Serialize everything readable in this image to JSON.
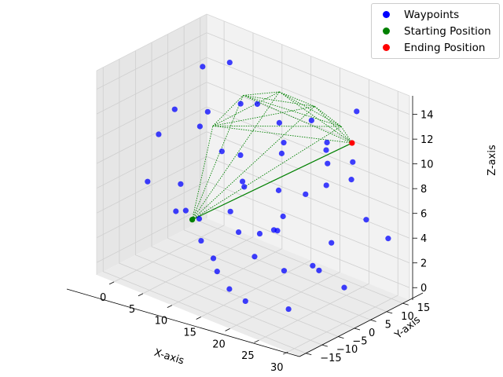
{
  "chart_data": {
    "type": "scatter",
    "projection": "3d",
    "xlabel": "X-axis",
    "ylabel": "Y-axis",
    "zlabel": "Z-axis",
    "xlim": [
      -3,
      32
    ],
    "ylim": [
      -17,
      17
    ],
    "zlim": [
      -1,
      15.5
    ],
    "xticks": [
      0,
      5,
      10,
      15,
      20,
      25,
      30
    ],
    "yticks": [
      -15,
      -10,
      -5,
      0,
      5,
      10,
      15
    ],
    "zticks": [
      0,
      2,
      4,
      6,
      8,
      10,
      12,
      14
    ],
    "grid": true,
    "legend_position": "top-right",
    "series": [
      {
        "name": "Waypoints",
        "color": "#0000ff",
        "points": [
          [
            1,
            -5,
            9.5
          ],
          [
            4,
            -2,
            3.5
          ],
          [
            3,
            5,
            14
          ],
          [
            6,
            8,
            14.5
          ],
          [
            2,
            0,
            5
          ],
          [
            5,
            3,
            11
          ],
          [
            7,
            -3,
            11
          ],
          [
            8,
            2,
            8.5
          ],
          [
            9,
            6,
            12
          ],
          [
            10,
            -8,
            3
          ],
          [
            11,
            -6,
            1.5
          ],
          [
            12,
            0,
            3
          ],
          [
            13,
            4,
            13
          ],
          [
            14,
            9,
            11
          ],
          [
            15,
            -12,
            2
          ],
          [
            16,
            -10,
            0.5
          ],
          [
            17,
            -4,
            2.5
          ],
          [
            18,
            3,
            5
          ],
          [
            19,
            10,
            12
          ],
          [
            20,
            13,
            10
          ],
          [
            21,
            -14,
            1
          ],
          [
            22,
            -7,
            6
          ],
          [
            23,
            1,
            8
          ],
          [
            24,
            6,
            10
          ],
          [
            25,
            12,
            9.5
          ],
          [
            26,
            -11,
            4
          ],
          [
            27,
            -2,
            3
          ],
          [
            28,
            4,
            1
          ],
          [
            29,
            9,
            6
          ],
          [
            30,
            14,
            4
          ],
          [
            29,
            -15,
            2
          ],
          [
            27,
            8,
            9
          ],
          [
            24,
            15,
            13
          ],
          [
            21,
            11,
            7
          ],
          [
            18,
            -9,
            9
          ],
          [
            15,
            7,
            6
          ],
          [
            12,
            12,
            1.5
          ],
          [
            9,
            -14,
            6
          ],
          [
            6,
            -9,
            13
          ],
          [
            3,
            -12,
            7
          ],
          [
            14,
            -3,
            10
          ],
          [
            17,
            5,
            10.5
          ],
          [
            20,
            -1,
            11
          ],
          [
            23,
            9,
            3
          ],
          [
            26,
            2,
            12
          ],
          [
            11,
            3,
            6.5
          ],
          [
            8,
            -5,
            4
          ],
          [
            5,
            10,
            2
          ],
          [
            19,
            -6,
            5
          ],
          [
            22,
            5,
            1.5
          ]
        ]
      },
      {
        "name": "Starting Position",
        "color": "#008000",
        "points": [
          [
            4,
            0,
            2.5
          ]
        ]
      },
      {
        "name": "Ending Position",
        "color": "#ff0000",
        "points": [
          [
            26,
            10,
            11.5
          ]
        ]
      }
    ],
    "path_color": "#008000",
    "path_hubs": [
      [
        7,
        1,
        10.5
      ],
      [
        10,
        5,
        13
      ],
      [
        14,
        9,
        13.5
      ],
      [
        19,
        11,
        13
      ],
      [
        23,
        12,
        12
      ]
    ]
  },
  "legend": {
    "items": [
      {
        "label": "Waypoints",
        "color": "#0000ff"
      },
      {
        "label": "Starting Position",
        "color": "#008000"
      },
      {
        "label": "Ending Position",
        "color": "#ff0000"
      }
    ]
  }
}
